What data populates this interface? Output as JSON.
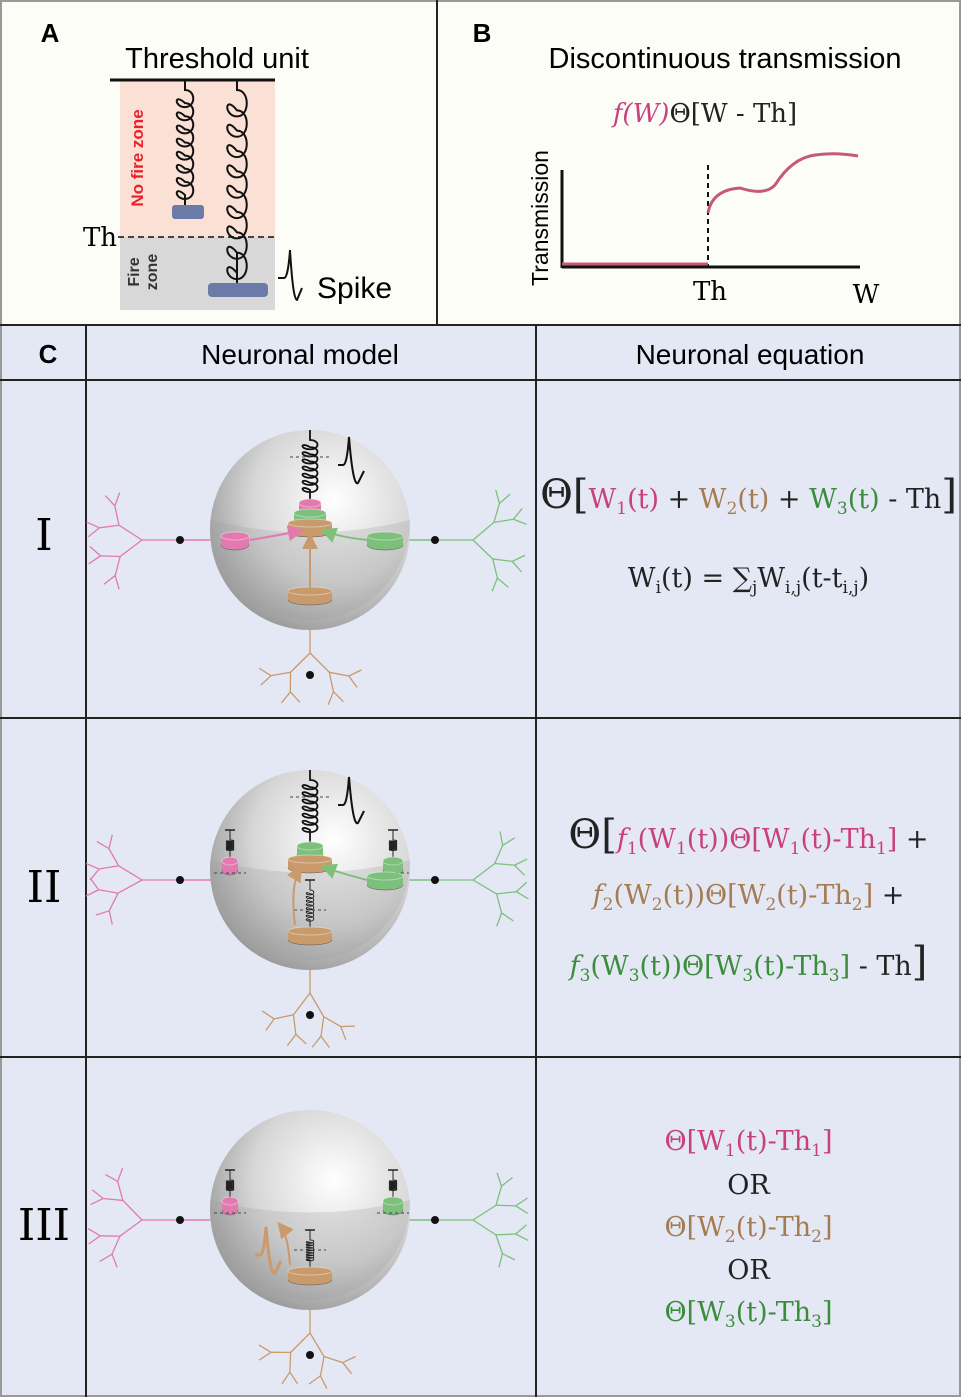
{
  "panel_a": {
    "letter": "A",
    "title": "Threshold unit",
    "no_fire_zone": "No fire zone",
    "fire_zone": [
      "Fire",
      "zone"
    ],
    "threshold": "Th",
    "spike": "Spike"
  },
  "panel_b": {
    "letter": "B",
    "title": "Discontinuous transmission",
    "formula": [
      {
        "text": "f(W)",
        "color": "#c8407c",
        "italic": true
      },
      {
        "text": "Θ[W - Th]",
        "color": "#222222"
      }
    ],
    "y_axis": "Transmission",
    "threshold": "Th",
    "x_axis": "W"
  },
  "table": {
    "letter": "C",
    "header": [
      "Neuronal model",
      "Neuronal equation"
    ],
    "rows": [
      {
        "label": "I",
        "equation": [
          [
            {
              "text": "Θ[",
              "color": "#222222",
              "big": true
            },
            {
              "text": "W",
              "color": "#c8407c"
            },
            {
              "text": "1",
              "color": "#c8407c",
              "sub": true
            },
            {
              "text": "(t)",
              "color": "#c8407c"
            },
            {
              "text": " + ",
              "color": "#222222"
            },
            {
              "text": "W",
              "color": "#a57c52"
            },
            {
              "text": "2",
              "color": "#a57c52",
              "sub": true
            },
            {
              "text": "(t)",
              "color": "#a57c52"
            },
            {
              "text": " + ",
              "color": "#222222"
            },
            {
              "text": "W",
              "color": "#3b8d3b"
            },
            {
              "text": "3",
              "color": "#3b8d3b",
              "sub": true
            },
            {
              "text": "(t)",
              "color": "#3b8d3b"
            },
            {
              "text": " - Th",
              "color": "#222222"
            },
            {
              "text": "]",
              "color": "#222222",
              "big": true
            }
          ],
          [
            {
              "text": "W",
              "color": "#222222"
            },
            {
              "text": "i",
              "color": "#222222",
              "sub": true
            },
            {
              "text": "(t) = ",
              "color": "#222222"
            },
            {
              "text": "∑",
              "color": "#222222"
            },
            {
              "text": "j",
              "color": "#222222",
              "sub": true
            },
            {
              "text": "W",
              "color": "#222222"
            },
            {
              "text": "i,j",
              "color": "#222222",
              "sub": true
            },
            {
              "text": "(t-t",
              "color": "#222222"
            },
            {
              "text": "i,j",
              "color": "#222222",
              "sub": true
            },
            {
              "text": ")",
              "color": "#222222"
            }
          ]
        ]
      },
      {
        "label": "II",
        "equation": [
          [
            {
              "text": "Θ[",
              "color": "#222222",
              "big": true
            },
            {
              "text": "f",
              "color": "#c8407c",
              "italic": true
            },
            {
              "text": "1",
              "color": "#c8407c",
              "sub": true
            },
            {
              "text": "(W",
              "color": "#c8407c"
            },
            {
              "text": "1",
              "color": "#c8407c",
              "sub": true
            },
            {
              "text": "(t))Θ[W",
              "color": "#c8407c"
            },
            {
              "text": "1",
              "color": "#c8407c",
              "sub": true
            },
            {
              "text": "(t)-Th",
              "color": "#c8407c"
            },
            {
              "text": "1",
              "color": "#c8407c",
              "sub": true
            },
            {
              "text": "]",
              "color": "#c8407c"
            },
            {
              "text": " +",
              "color": "#222222"
            }
          ],
          [
            {
              "text": "f",
              "color": "#a57c52",
              "italic": true
            },
            {
              "text": "2",
              "color": "#a57c52",
              "sub": true
            },
            {
              "text": "(W",
              "color": "#a57c52"
            },
            {
              "text": "2",
              "color": "#a57c52",
              "sub": true
            },
            {
              "text": "(t))Θ[W",
              "color": "#a57c52"
            },
            {
              "text": "2",
              "color": "#a57c52",
              "sub": true
            },
            {
              "text": "(t)-Th",
              "color": "#a57c52"
            },
            {
              "text": "2",
              "color": "#a57c52",
              "sub": true
            },
            {
              "text": "]",
              "color": "#a57c52"
            },
            {
              "text": " +",
              "color": "#222222"
            }
          ],
          [
            {
              "text": "f",
              "color": "#3b8d3b",
              "italic": true
            },
            {
              "text": "3",
              "color": "#3b8d3b",
              "sub": true
            },
            {
              "text": "(W",
              "color": "#3b8d3b"
            },
            {
              "text": "3",
              "color": "#3b8d3b",
              "sub": true
            },
            {
              "text": "(t))Θ[W",
              "color": "#3b8d3b"
            },
            {
              "text": "3",
              "color": "#3b8d3b",
              "sub": true
            },
            {
              "text": "(t)-Th",
              "color": "#3b8d3b"
            },
            {
              "text": "3",
              "color": "#3b8d3b",
              "sub": true
            },
            {
              "text": "]",
              "color": "#3b8d3b"
            },
            {
              "text": " - Th",
              "color": "#222222"
            },
            {
              "text": "]",
              "color": "#222222",
              "big": true
            }
          ]
        ]
      },
      {
        "label": "III",
        "equation": [
          [
            {
              "text": "Θ[W",
              "color": "#c8407c"
            },
            {
              "text": "1",
              "color": "#c8407c",
              "sub": true
            },
            {
              "text": "(t)-Th",
              "color": "#c8407c"
            },
            {
              "text": "1",
              "color": "#c8407c",
              "sub": true
            },
            {
              "text": "]",
              "color": "#c8407c"
            }
          ],
          [
            {
              "text": "OR",
              "color": "#222222"
            }
          ],
          [
            {
              "text": "Θ[W",
              "color": "#a57c52"
            },
            {
              "text": "2",
              "color": "#a57c52",
              "sub": true
            },
            {
              "text": "(t)-Th",
              "color": "#a57c52"
            },
            {
              "text": "2",
              "color": "#a57c52",
              "sub": true
            },
            {
              "text": "]",
              "color": "#a57c52"
            }
          ],
          [
            {
              "text": "OR",
              "color": "#222222"
            }
          ],
          [
            {
              "text": "Θ[W",
              "color": "#3b8d3b"
            },
            {
              "text": "3",
              "color": "#3b8d3b",
              "sub": true
            },
            {
              "text": "(t)-Th",
              "color": "#3b8d3b"
            },
            {
              "text": "3",
              "color": "#3b8d3b",
              "sub": true
            },
            {
              "text": "]",
              "color": "#3b8d3b"
            }
          ]
        ]
      }
    ]
  }
}
